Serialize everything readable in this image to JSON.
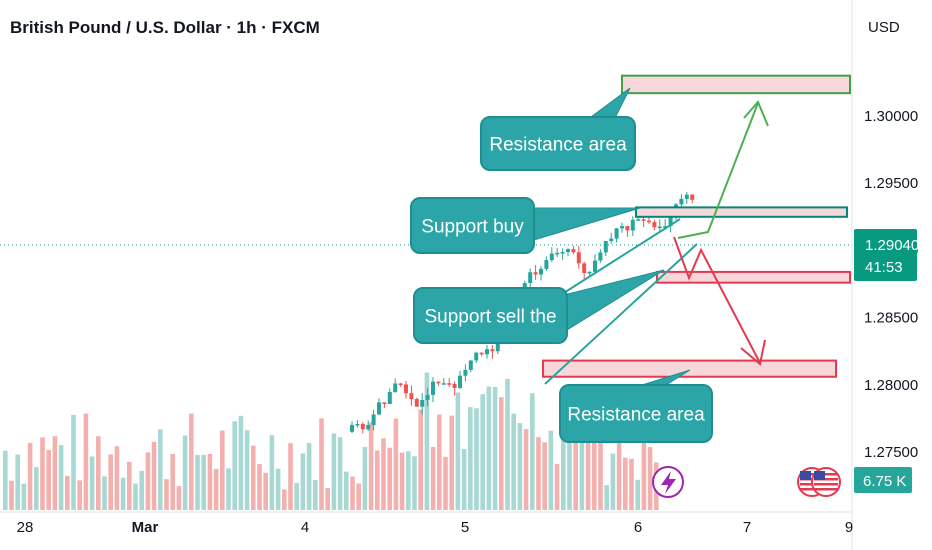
{
  "header": {
    "title": "British Pound / U.S. Dollar · 1h · FXCM",
    "currency": "USD"
  },
  "chart_data": {
    "type": "candlestick",
    "y_ticks": [
      "1.30000",
      "1.29500",
      "1.29000",
      "1.28500",
      "1.28000",
      "1.27500"
    ],
    "y_tick_values": [
      1.3,
      1.295,
      1.29,
      1.285,
      1.28,
      1.275
    ],
    "x_ticks": [
      "28",
      "Mar",
      "4",
      "5",
      "6",
      "7",
      "9"
    ],
    "current_price": "1.29040",
    "countdown": "41:53",
    "volume": "6.75 K",
    "annotations": [
      {
        "name": "resistance-area-top",
        "text": "Resistance area",
        "box": [
          1.3017,
          1.303
        ],
        "color": "#43a047"
      },
      {
        "name": "support-buy",
        "text": "Support buy",
        "box": [
          1.2925,
          1.2932
        ],
        "color": "#00897b"
      },
      {
        "name": "support-sell",
        "text": "Support sell the",
        "box": [
          1.2876,
          1.2884
        ],
        "color": "#e53950"
      },
      {
        "name": "resistance-area-bottom",
        "text": "Resistance area",
        "box": [
          1.2806,
          1.2818
        ],
        "color": "#e53950"
      }
    ],
    "colors": {
      "up": "#26a69a",
      "down": "#ef5350",
      "callout": "#2ca5a8",
      "price_line": "#089981"
    }
  }
}
